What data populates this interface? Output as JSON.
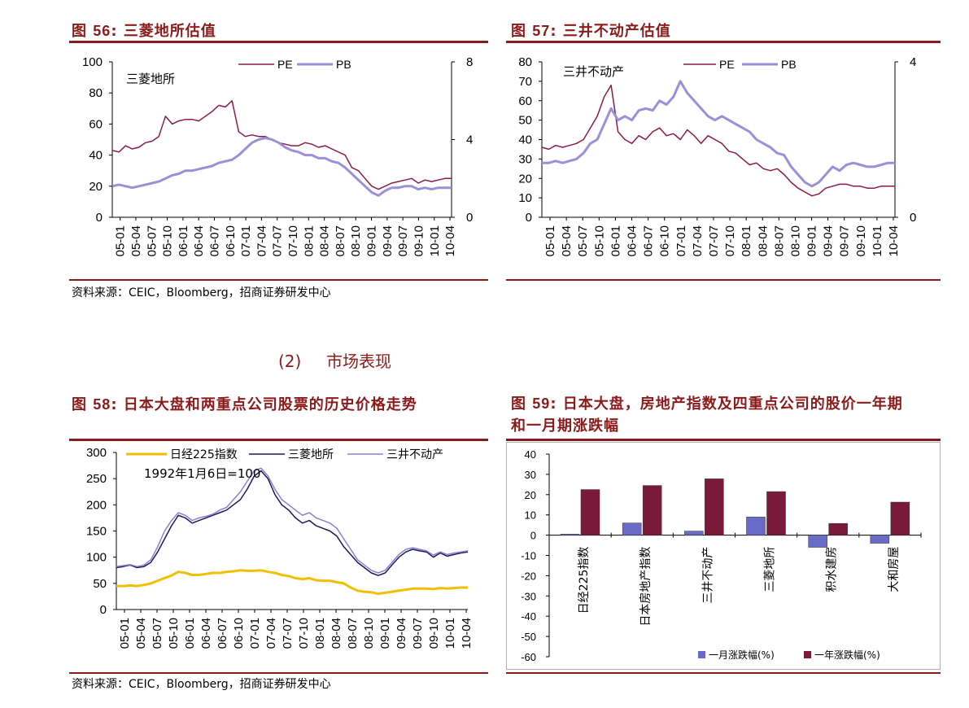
{
  "fig56": {
    "label": "图",
    "num": "56",
    "colon": ":",
    "title": "三菱地所估值"
  },
  "fig57": {
    "label": "图",
    "num": "57",
    "colon": ":",
    "title": "三井不动产估值"
  },
  "fig58": {
    "label": "图",
    "num": "58",
    "colon": ":",
    "title": "日本大盘和两重点公司股票的历史价格走势"
  },
  "fig59": {
    "label": "图",
    "num": "59",
    "colon": ":",
    "title_line1": "日本大盘，房地产指数及四重点公司的股价一年期",
    "title_line2": "和一月期涨跌幅"
  },
  "source_text": "资料来源：CEIC，Bloomberg，招商证券研发中心",
  "section": {
    "number": "(2)",
    "title": "市场表现"
  },
  "colors": {
    "accent": "#8b1a1a",
    "pe": "#8b1a4a",
    "pb": "#9a90d8",
    "nikkei": "#f0c000",
    "mitsubishi": "#1a1a5a",
    "mitsui": "#8a80d0",
    "month": "#6a6ac8",
    "year": "#7a1a3a"
  },
  "chart_data": [
    {
      "type": "line",
      "annotation": "三菱地所",
      "x_ticks": [
        "05-01",
        "05-04",
        "05-07",
        "05-10",
        "06-01",
        "06-04",
        "06-07",
        "06-10",
        "07-01",
        "07-04",
        "07-07",
        "07-10",
        "08-01",
        "08-04",
        "08-07",
        "08-10",
        "09-01",
        "09-04",
        "09-07",
        "09-10",
        "10-01",
        "10-04"
      ],
      "ylim_left": [
        0,
        100
      ],
      "yticks_left": [
        "0",
        "20",
        "40",
        "60",
        "80",
        "100"
      ],
      "ylim_right": [
        0,
        8
      ],
      "yticks_right": [
        "0",
        "4",
        "8"
      ],
      "series": [
        {
          "name": "PE",
          "axis": "left",
          "values": [
            43,
            42,
            46,
            44,
            45,
            48,
            49,
            52,
            65,
            60,
            62,
            63,
            63,
            62,
            65,
            68,
            72,
            71,
            75,
            55,
            52,
            53,
            52,
            52,
            50,
            48,
            47,
            46,
            46,
            48,
            47,
            45,
            46,
            44,
            42,
            40,
            32,
            30,
            25,
            20,
            18,
            20,
            22,
            23,
            24,
            25,
            22,
            24,
            23,
            24,
            25,
            25
          ]
        },
        {
          "name": "PB",
          "axis": "left",
          "values": [
            20,
            21,
            20,
            19,
            20,
            21,
            22,
            23,
            25,
            27,
            28,
            30,
            30,
            31,
            32,
            33,
            35,
            36,
            37,
            40,
            44,
            48,
            50,
            51,
            50,
            48,
            45,
            43,
            42,
            40,
            40,
            38,
            38,
            36,
            35,
            32,
            28,
            24,
            20,
            16,
            14,
            17,
            19,
            19,
            20,
            20,
            18,
            19,
            18,
            19,
            19,
            19
          ]
        }
      ]
    },
    {
      "type": "line",
      "annotation": "三井不动产",
      "x_ticks": [
        "05-01",
        "05-04",
        "05-07",
        "05-10",
        "06-01",
        "06-04",
        "06-07",
        "06-10",
        "07-01",
        "07-04",
        "07-07",
        "07-10",
        "08-01",
        "08-04",
        "08-07",
        "08-10",
        "09-01",
        "09-04",
        "09-07",
        "09-10",
        "10-01",
        "10-04"
      ],
      "ylim_left": [
        0,
        80
      ],
      "yticks_left": [
        "0",
        "10",
        "20",
        "30",
        "40",
        "50",
        "60",
        "70",
        "80"
      ],
      "ylim_right": [
        0,
        4
      ],
      "yticks_right": [
        "0",
        "4"
      ],
      "series": [
        {
          "name": "PE",
          "axis": "left",
          "values": [
            36,
            35,
            37,
            36,
            37,
            38,
            40,
            46,
            52,
            62,
            68,
            44,
            40,
            38,
            42,
            40,
            44,
            46,
            42,
            43,
            40,
            45,
            42,
            38,
            42,
            40,
            38,
            34,
            33,
            30,
            27,
            28,
            25,
            24,
            25,
            22,
            18,
            15,
            13,
            11,
            12,
            15,
            16,
            17,
            17,
            16,
            16,
            15,
            15,
            16,
            16,
            16
          ]
        },
        {
          "name": "PB",
          "axis": "left",
          "values": [
            28,
            28,
            29,
            28,
            29,
            30,
            33,
            38,
            40,
            48,
            56,
            50,
            52,
            50,
            55,
            56,
            55,
            60,
            58,
            62,
            70,
            64,
            60,
            56,
            52,
            50,
            52,
            50,
            48,
            46,
            44,
            40,
            38,
            36,
            33,
            32,
            26,
            22,
            18,
            16,
            18,
            22,
            26,
            24,
            27,
            28,
            27,
            26,
            26,
            27,
            28,
            28
          ]
        }
      ]
    },
    {
      "type": "line",
      "annotation": "1992年1月6日=100",
      "x_ticks": [
        "05-01",
        "05-04",
        "05-07",
        "05-10",
        "06-01",
        "06-04",
        "06-07",
        "06-10",
        "07-01",
        "07-04",
        "07-07",
        "07-10",
        "08-01",
        "08-04",
        "08-07",
        "08-10",
        "09-01",
        "09-04",
        "09-07",
        "09-10",
        "10-01",
        "10-04"
      ],
      "ylim": [
        0,
        300
      ],
      "yticks": [
        "0",
        "50",
        "100",
        "150",
        "200",
        "250",
        "300"
      ],
      "series": [
        {
          "name": "日经225指数",
          "values": [
            45,
            45,
            46,
            45,
            47,
            50,
            55,
            60,
            65,
            72,
            70,
            66,
            66,
            68,
            70,
            70,
            72,
            73,
            75,
            74,
            74,
            75,
            72,
            70,
            66,
            64,
            60,
            58,
            60,
            56,
            55,
            55,
            52,
            50,
            42,
            36,
            34,
            33,
            30,
            32,
            34,
            36,
            38,
            40,
            40,
            40,
            39,
            41,
            40,
            41,
            42,
            42
          ]
        },
        {
          "name": "三菱地所",
          "values": [
            80,
            82,
            85,
            80,
            82,
            90,
            110,
            135,
            160,
            180,
            175,
            165,
            170,
            175,
            180,
            185,
            190,
            200,
            210,
            230,
            255,
            265,
            250,
            220,
            200,
            190,
            175,
            165,
            170,
            160,
            155,
            150,
            140,
            120,
            105,
            90,
            80,
            70,
            65,
            70,
            85,
            100,
            110,
            115,
            112,
            110,
            100,
            108,
            102,
            105,
            108,
            110
          ]
        },
        {
          "name": "三井不动产",
          "values": [
            82,
            84,
            86,
            82,
            85,
            95,
            120,
            150,
            170,
            185,
            180,
            170,
            175,
            178,
            182,
            190,
            195,
            210,
            225,
            245,
            265,
            270,
            255,
            230,
            210,
            200,
            190,
            180,
            185,
            175,
            170,
            165,
            155,
            135,
            115,
            95,
            85,
            75,
            70,
            75,
            90,
            105,
            115,
            118,
            115,
            112,
            104,
            110,
            105,
            108,
            110,
            112
          ]
        }
      ]
    },
    {
      "type": "bar",
      "categories": [
        "日经225指数",
        "日本房地产指数",
        "三井不动产",
        "三菱地所",
        "积水建房",
        "大和房屋"
      ],
      "ylim": [
        -60,
        40
      ],
      "yticks": [
        "40",
        "30",
        "20",
        "10",
        "0",
        "-10",
        "-20",
        "-30",
        "-40",
        "-50",
        "-60"
      ],
      "series": [
        {
          "name": "一月涨跌幅(%)",
          "values": [
            0.5,
            6,
            2,
            9,
            -6,
            -4
          ]
        },
        {
          "name": "一年涨跌幅(%)",
          "values": [
            22.5,
            24.5,
            27.8,
            21.5,
            5.8,
            16.3
          ]
        }
      ]
    }
  ]
}
